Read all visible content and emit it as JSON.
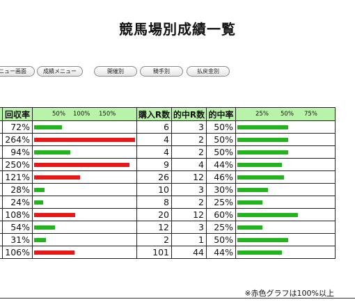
{
  "page": {
    "title": "競馬場別成績一覧"
  },
  "nav": {
    "buttons": [
      {
        "label": "ニュー画面"
      },
      {
        "label": "成績メニュー"
      },
      {
        "label": "開催別"
      },
      {
        "label": "騎手別"
      },
      {
        "label": "払戻金別"
      }
    ]
  },
  "table": {
    "headers": {
      "return_rate": "回収率",
      "races": "購入R数",
      "hits": "的中R数",
      "hit_rate": "的中率"
    },
    "return_scale": [
      "50%",
      "100%",
      "150%"
    ],
    "hit_scale": [
      "25%",
      "50%",
      "75%"
    ],
    "rows": [
      {
        "return_rate": "72%",
        "return_value": 72,
        "races": "6",
        "hits": "3",
        "hit_rate": "50%",
        "hit_value": 50
      },
      {
        "return_rate": "264%",
        "return_value": 264,
        "races": "4",
        "hits": "2",
        "hit_rate": "50%",
        "hit_value": 50
      },
      {
        "return_rate": "94%",
        "return_value": 94,
        "races": "4",
        "hits": "2",
        "hit_rate": "50%",
        "hit_value": 50
      },
      {
        "return_rate": "250%",
        "return_value": 250,
        "races": "9",
        "hits": "4",
        "hit_rate": "44%",
        "hit_value": 44
      },
      {
        "return_rate": "121%",
        "return_value": 121,
        "races": "26",
        "hits": "12",
        "hit_rate": "46%",
        "hit_value": 46
      },
      {
        "return_rate": "28%",
        "return_value": 28,
        "races": "10",
        "hits": "3",
        "hit_rate": "30%",
        "hit_value": 30
      },
      {
        "return_rate": "24%",
        "return_value": 24,
        "races": "8",
        "hits": "2",
        "hit_rate": "25%",
        "hit_value": 25
      },
      {
        "return_rate": "108%",
        "return_value": 108,
        "races": "20",
        "hits": "12",
        "hit_rate": "60%",
        "hit_value": 60
      },
      {
        "return_rate": "54%",
        "return_value": 54,
        "races": "12",
        "hits": "3",
        "hit_rate": "25%",
        "hit_value": 25
      },
      {
        "return_rate": "31%",
        "return_value": 31,
        "races": "2",
        "hits": "1",
        "hit_rate": "50%",
        "hit_value": 50
      },
      {
        "return_rate": "106%",
        "return_value": 106,
        "races": "101",
        "hits": "44",
        "hit_rate": "44%",
        "hit_value": 44
      }
    ]
  },
  "footnote": "※赤色グラフは100%以上",
  "colors": {
    "under_100": "#22b41c",
    "over_100": "#e81818",
    "header_bg": "#b9f3a9"
  }
}
